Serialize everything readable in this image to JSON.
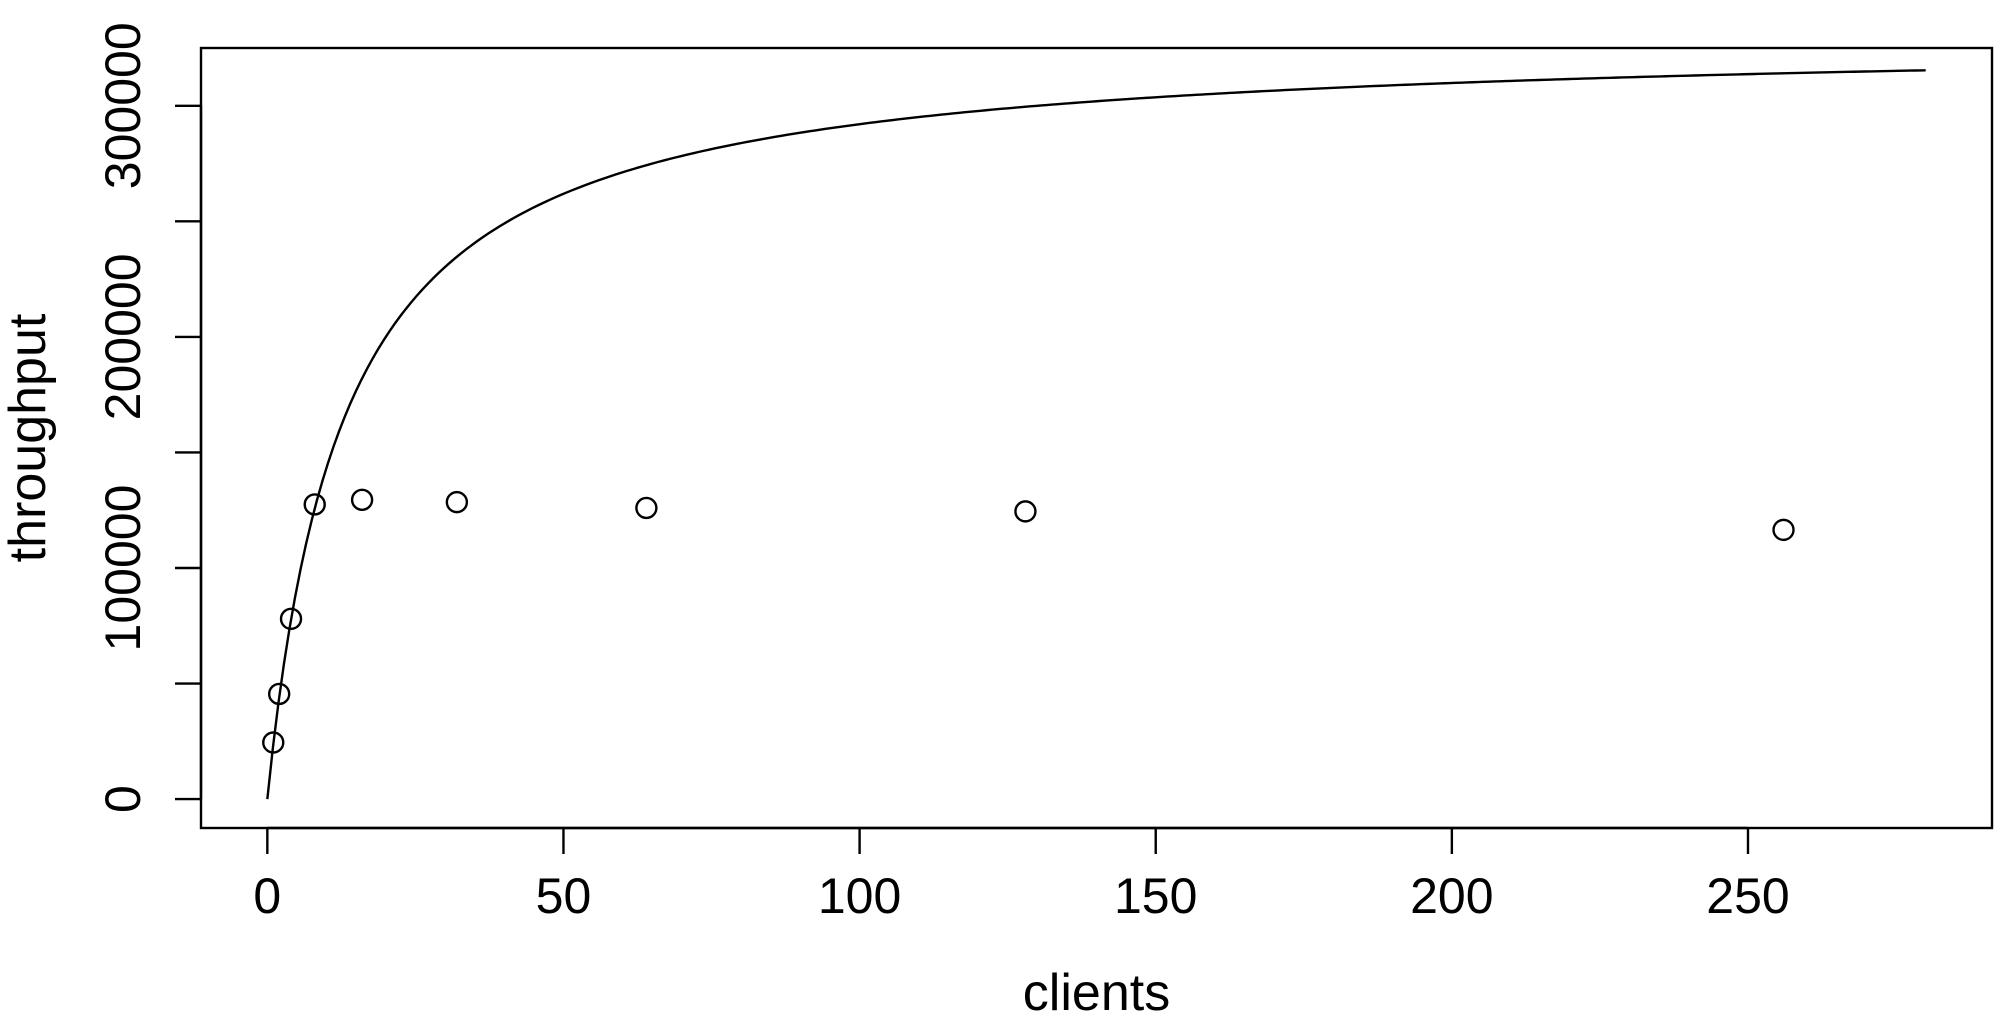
{
  "chart_data": {
    "type": "scatter",
    "xlabel": "clients",
    "ylabel": "throughput",
    "xlim": [
      -11.2,
      291.2
    ],
    "ylim": [
      -12500,
      325000
    ],
    "x_ticks": [
      0,
      50,
      100,
      150,
      200,
      250
    ],
    "x_tick_labels": [
      "0",
      "50",
      "100",
      "150",
      "200",
      "250"
    ],
    "y_ticks": [
      0,
      50000,
      100000,
      150000,
      200000,
      250000,
      300000
    ],
    "y_tick_labels": [
      "0",
      "",
      "100000",
      "",
      "200000",
      "",
      "300000"
    ],
    "grid": false,
    "series": [
      {
        "type": "scatter",
        "marker": "open-circle",
        "points": [
          {
            "x": 1,
            "y": 24500
          },
          {
            "x": 2,
            "y": 45500
          },
          {
            "x": 4,
            "y": 78000
          },
          {
            "x": 8,
            "y": 127500
          },
          {
            "x": 16,
            "y": 129500
          },
          {
            "x": 32,
            "y": 128500
          },
          {
            "x": 64,
            "y": 126000
          },
          {
            "x": 128,
            "y": 124500
          },
          {
            "x": 256,
            "y": 116500
          }
        ]
      },
      {
        "type": "line",
        "model": {
          "form": "peak * x / (x + half)",
          "peak": 330000,
          "half": 13,
          "x_range": [
            0,
            280
          ]
        }
      }
    ]
  }
}
